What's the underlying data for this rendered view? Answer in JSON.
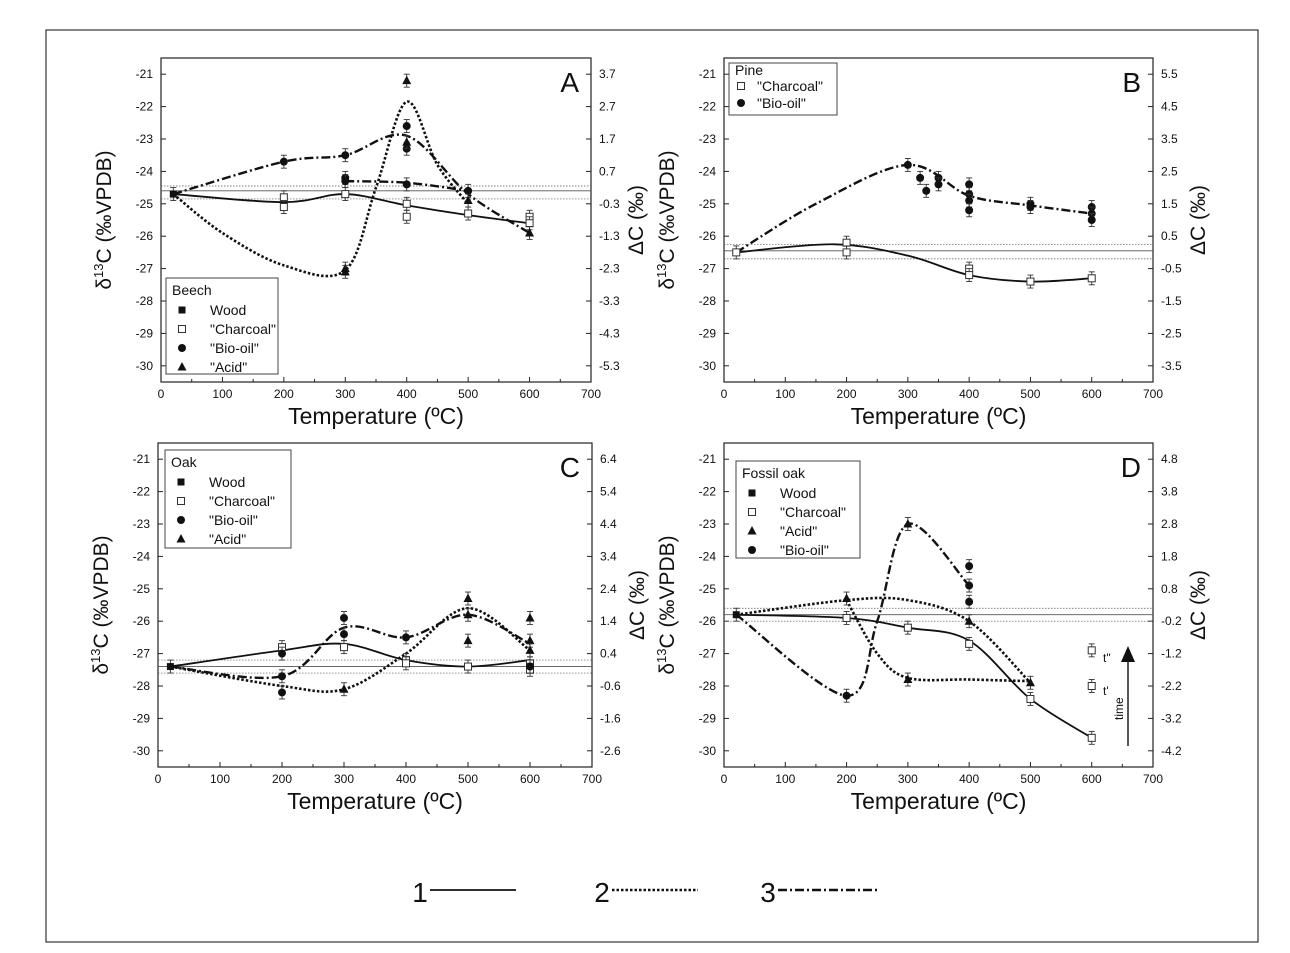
{
  "chart_data": [
    {
      "type": "scatter",
      "panel": "A",
      "legend_title": "Beech",
      "legend_placement": "bottom-left",
      "xlabel": "Temperature (ºC)",
      "ylabel": "δ13C (‰VPDB)",
      "y2label": "ΔC (‰)",
      "xlim": [
        0,
        700
      ],
      "ylim": [
        -30.5,
        -20.5
      ],
      "x_ticks": [
        0,
        100,
        200,
        300,
        400,
        500,
        600,
        700
      ],
      "y_ticks": [
        -30,
        -29,
        -28,
        -27,
        -26,
        -25,
        -24,
        -23,
        -22,
        -21
      ],
      "y2_ticks": [
        "3.7",
        "2.7",
        "1.7",
        "0.7",
        "-0.3",
        "-1.3",
        "-2.3",
        "-3.3",
        "-4.3",
        "-5.3"
      ],
      "ref_lines": [
        -24.45,
        -24.6,
        -24.85
      ],
      "series": [
        {
          "name": "Wood",
          "marker": "square-filled",
          "x": [
            20
          ],
          "y": [
            -24.7
          ]
        },
        {
          "name": "\"Charcoal\"",
          "marker": "square-open",
          "x": [
            200,
            200,
            300,
            400,
            400,
            500,
            600,
            600
          ],
          "y": [
            -24.8,
            -25.1,
            -24.7,
            -25.0,
            -25.4,
            -25.3,
            -25.4,
            -25.6
          ]
        },
        {
          "name": "\"Bio-oil\"",
          "marker": "circle-filled",
          "x": [
            200,
            300,
            300,
            300,
            400,
            400,
            400,
            500
          ],
          "y": [
            -23.7,
            -23.5,
            -24.2,
            -24.3,
            -22.6,
            -23.3,
            -24.4,
            -24.6
          ]
        },
        {
          "name": "\"Acid\"",
          "marker": "triangle-filled",
          "x": [
            300,
            300,
            400,
            400,
            500,
            600
          ],
          "y": [
            -27.0,
            -27.1,
            -21.2,
            -23.1,
            -24.9,
            -25.9
          ]
        }
      ],
      "curves": [
        {
          "style": 1,
          "x": [
            20,
            200,
            300,
            400,
            500,
            600
          ],
          "y": [
            -24.7,
            -24.95,
            -24.7,
            -25.05,
            -25.35,
            -25.6
          ]
        },
        {
          "style": 2,
          "x": [
            20,
            100,
            200,
            300,
            350,
            400,
            450,
            500
          ],
          "y": [
            -24.7,
            -25.9,
            -26.9,
            -27.05,
            -24.5,
            -21.85,
            -23.8,
            -25.0
          ]
        },
        {
          "style": 3,
          "x": [
            20,
            200,
            300,
            400,
            500,
            600
          ],
          "y": [
            -24.7,
            -23.7,
            -23.5,
            -22.9,
            -24.7,
            -25.9
          ]
        },
        {
          "style": 3,
          "x": [
            300,
            400,
            500
          ],
          "y": [
            -24.3,
            -24.35,
            -24.6
          ]
        }
      ]
    },
    {
      "type": "scatter",
      "panel": "B",
      "legend_title": "Pine",
      "legend_placement": "top-left",
      "xlabel": "Temperature (ºC)",
      "ylabel": "δ13C (‰VPDB)",
      "y2label": "ΔC (‰)",
      "xlim": [
        0,
        700
      ],
      "ylim": [
        -30.5,
        -20.5
      ],
      "x_ticks": [
        0,
        100,
        200,
        300,
        400,
        500,
        600,
        700
      ],
      "y_ticks": [
        -30,
        -29,
        -28,
        -27,
        -26,
        -25,
        -24,
        -23,
        -22,
        -21
      ],
      "y2_ticks": [
        "5.5",
        "4.5",
        "3.5",
        "2.5",
        "1.5",
        "0.5",
        "-0.5",
        "-1.5",
        "-2.5",
        "-3.5"
      ],
      "ref_lines": [
        -26.25,
        -26.45,
        -26.7
      ],
      "series": [
        {
          "name": "\"Charcoal\"",
          "marker": "square-open",
          "x": [
            20,
            200,
            200,
            400,
            400,
            500,
            600
          ],
          "y": [
            -26.5,
            -26.2,
            -26.5,
            -27.0,
            -27.2,
            -27.4,
            -27.3
          ]
        },
        {
          "name": "\"Bio-oil\"",
          "marker": "circle-filled",
          "x": [
            300,
            320,
            330,
            350,
            350,
            400,
            400,
            400,
            400,
            500,
            500,
            600,
            600,
            600
          ],
          "y": [
            -23.8,
            -24.2,
            -24.6,
            -24.2,
            -24.4,
            -24.4,
            -24.7,
            -24.9,
            -25.2,
            -25.0,
            -25.1,
            -25.1,
            -25.3,
            -25.5
          ]
        }
      ],
      "curves": [
        {
          "style": 1,
          "x": [
            20,
            180,
            300,
            400,
            500,
            600
          ],
          "y": [
            -26.5,
            -26.25,
            -26.6,
            -27.2,
            -27.4,
            -27.3
          ]
        },
        {
          "style": 3,
          "x": [
            20,
            150,
            300,
            400,
            500,
            600
          ],
          "y": [
            -26.5,
            -25.0,
            -23.8,
            -24.75,
            -25.05,
            -25.3
          ]
        }
      ]
    },
    {
      "type": "scatter",
      "panel": "C",
      "legend_title": "Oak",
      "legend_placement": "top-left",
      "xlabel": "Temperature (ºC)",
      "ylabel": "δ13C (‰VPDB)",
      "y2label": "ΔC (‰)",
      "xlim": [
        0,
        700
      ],
      "ylim": [
        -30.5,
        -20.5
      ],
      "x_ticks": [
        0,
        100,
        200,
        300,
        400,
        500,
        600,
        700
      ],
      "y_ticks": [
        -30,
        -29,
        -28,
        -27,
        -26,
        -25,
        -24,
        -23,
        -22,
        -21
      ],
      "y2_ticks": [
        "6.4",
        "5.4",
        "4.4",
        "3.4",
        "2.4",
        "1.4",
        "0.4",
        "-0.6",
        "-1.6",
        "-2.6"
      ],
      "ref_lines": [
        -27.2,
        -27.4,
        -27.6
      ],
      "series": [
        {
          "name": "Wood",
          "marker": "square-filled",
          "x": [
            20
          ],
          "y": [
            -27.4
          ]
        },
        {
          "name": "\"Charcoal\"",
          "marker": "square-open",
          "x": [
            200,
            300,
            400,
            400,
            500,
            600,
            600
          ],
          "y": [
            -26.8,
            -26.8,
            -27.2,
            -27.3,
            -27.4,
            -27.3,
            -27.5
          ]
        },
        {
          "name": "\"Bio-oil\"",
          "marker": "circle-filled",
          "x": [
            200,
            200,
            200,
            300,
            300,
            400,
            600
          ],
          "y": [
            -27.0,
            -27.7,
            -28.2,
            -25.9,
            -26.4,
            -26.5,
            -27.4
          ]
        },
        {
          "name": "\"Acid\"",
          "marker": "triangle-filled",
          "x": [
            300,
            500,
            500,
            500,
            600,
            600,
            600
          ],
          "y": [
            -28.1,
            -25.3,
            -25.8,
            -26.6,
            -25.9,
            -26.6,
            -26.9
          ]
        }
      ],
      "curves": [
        {
          "style": 1,
          "x": [
            20,
            200,
            300,
            400,
            500,
            600
          ],
          "y": [
            -27.4,
            -26.9,
            -26.7,
            -27.2,
            -27.4,
            -27.2
          ]
        },
        {
          "style": 2,
          "x": [
            20,
            200,
            300,
            400,
            500,
            600
          ],
          "y": [
            -27.4,
            -28.0,
            -28.1,
            -27.0,
            -25.6,
            -26.9
          ]
        },
        {
          "style": 3,
          "x": [
            20,
            200,
            300,
            400,
            500,
            600
          ],
          "y": [
            -27.4,
            -27.7,
            -26.2,
            -26.5,
            -25.8,
            -26.7
          ]
        }
      ]
    },
    {
      "type": "scatter",
      "panel": "D",
      "legend_title": "Fossil oak",
      "legend_placement": "top-left",
      "xlabel": "Temperature (ºC)",
      "ylabel": "δ13C (‰VPDB)",
      "y2label": "ΔC (‰)",
      "xlim": [
        0,
        700
      ],
      "ylim": [
        -30.5,
        -20.5
      ],
      "x_ticks": [
        0,
        100,
        200,
        300,
        400,
        500,
        600,
        700
      ],
      "y_ticks": [
        -30,
        -29,
        -28,
        -27,
        -26,
        -25,
        -24,
        -23,
        -22,
        -21
      ],
      "y2_ticks": [
        "4.8",
        "3.8",
        "2.8",
        "1.8",
        "0.8",
        "-0.2",
        "-1.2",
        "-2.2",
        "-3.2",
        "-4.2"
      ],
      "ref_lines": [
        -25.6,
        -25.8,
        -26.0
      ],
      "series": [
        {
          "name": "Wood",
          "marker": "square-filled",
          "x": [
            20
          ],
          "y": [
            -25.8
          ]
        },
        {
          "name": "\"Charcoal\"",
          "marker": "square-open",
          "x": [
            200,
            300,
            400,
            500,
            600,
            600,
            600
          ],
          "y": [
            -25.9,
            -26.2,
            -26.7,
            -28.4,
            -29.6,
            -26.9,
            -28.0
          ]
        },
        {
          "name": "\"Acid\"",
          "marker": "triangle-filled",
          "x": [
            200,
            300,
            300,
            400,
            500
          ],
          "y": [
            -25.3,
            -23.0,
            -27.8,
            -26.0,
            -27.9
          ]
        },
        {
          "name": "\"Bio-oil\"",
          "marker": "circle-filled",
          "x": [
            200,
            400,
            400,
            400
          ],
          "y": [
            -28.3,
            -24.3,
            -24.9,
            -25.4
          ]
        }
      ],
      "curves": [
        {
          "style": 1,
          "x": [
            20,
            200,
            300,
            400,
            500,
            600
          ],
          "y": [
            -25.8,
            -25.9,
            -26.2,
            -26.6,
            -28.4,
            -29.6
          ]
        },
        {
          "style": 2,
          "x": [
            20,
            200,
            300,
            400,
            500
          ],
          "y": [
            -25.8,
            -25.35,
            -25.35,
            -26.0,
            -27.9
          ]
        },
        {
          "style": 2,
          "x": [
            200,
            250,
            300,
            400,
            500
          ],
          "y": [
            -25.35,
            -27.0,
            -27.75,
            -27.8,
            -27.85
          ]
        },
        {
          "style": 3,
          "x": [
            20,
            200,
            250,
            300,
            400
          ],
          "y": [
            -25.8,
            -28.3,
            -26.0,
            -23.0,
            -24.9
          ]
        }
      ],
      "annotations": [
        "t\"",
        "t'",
        "time"
      ]
    }
  ],
  "line_legend": [
    {
      "label": "1",
      "style": 1
    },
    {
      "label": "2",
      "style": 2
    },
    {
      "label": "3",
      "style": 3
    }
  ]
}
